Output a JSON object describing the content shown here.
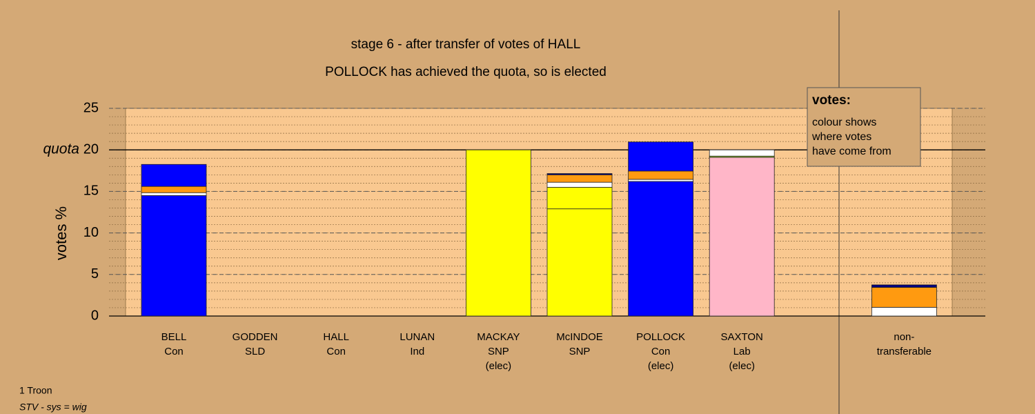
{
  "chart_data": {
    "type": "stacked_bar",
    "title": "stage 6 - after transfer of votes of HALL",
    "subtitle": "POLLOCK has achieved the quota, so is elected",
    "y_label": "votes %",
    "categories": [
      [
        "BELL",
        "Con"
      ],
      [
        "GODDEN",
        "SLD"
      ],
      [
        "HALL",
        "Con"
      ],
      [
        "LUNAN",
        "Ind"
      ],
      [
        "MACKAY",
        "SNP",
        "(elec)"
      ],
      [
        "McINDOE",
        "SNP"
      ],
      [
        "POLLOCK",
        "Con",
        "(elec)"
      ],
      [
        "SAXTON",
        "Lab",
        "(elec)"
      ],
      [
        "non-",
        "transferable"
      ]
    ],
    "series": [
      {
        "color": "#0000ff",
        "values": [
          14.5,
          0,
          0,
          0,
          0,
          0,
          16.2,
          0,
          0
        ]
      },
      {
        "color": "#ffff00",
        "values": [
          0,
          0,
          0,
          0,
          20.0,
          12.9,
          0,
          0,
          0
        ]
      },
      {
        "color": "#ffb6c8",
        "values": [
          0,
          0,
          0,
          0,
          0,
          0,
          0,
          19.1,
          0
        ]
      },
      {
        "color": "#ffff00",
        "values": [
          0,
          0,
          0,
          0,
          0,
          2.6,
          0,
          0,
          0
        ]
      },
      {
        "color": "#9acd32",
        "values": [
          0,
          0,
          0,
          0,
          0,
          0,
          0,
          0.15,
          0
        ]
      },
      {
        "color": "#ffffff",
        "values": [
          0.35,
          0,
          0,
          0,
          0,
          0.6,
          0.25,
          0.75,
          1.05
        ]
      },
      {
        "color": "#ff9a10",
        "values": [
          0.75,
          0,
          0,
          0,
          0,
          0.9,
          1.0,
          0,
          2.4
        ]
      },
      {
        "color": "#0000ff",
        "values": [
          2.65,
          0,
          0,
          0,
          0,
          0,
          3.5,
          0,
          0
        ]
      },
      {
        "color": "#000080",
        "values": [
          0,
          0,
          0,
          0,
          0,
          0.15,
          0,
          0,
          0.3
        ]
      }
    ],
    "ylim": [
      0,
      25
    ],
    "yticks": [
      0,
      5,
      10,
      15,
      20,
      25
    ],
    "grid": true,
    "minor_grid": true,
    "quota": {
      "value": 20,
      "label": "quota"
    },
    "legend": {
      "title": "votes:",
      "lines": [
        "colour shows",
        "where votes",
        "have come from"
      ]
    },
    "footnotes": [
      "1 Troon",
      "STV - sys = wig"
    ]
  }
}
